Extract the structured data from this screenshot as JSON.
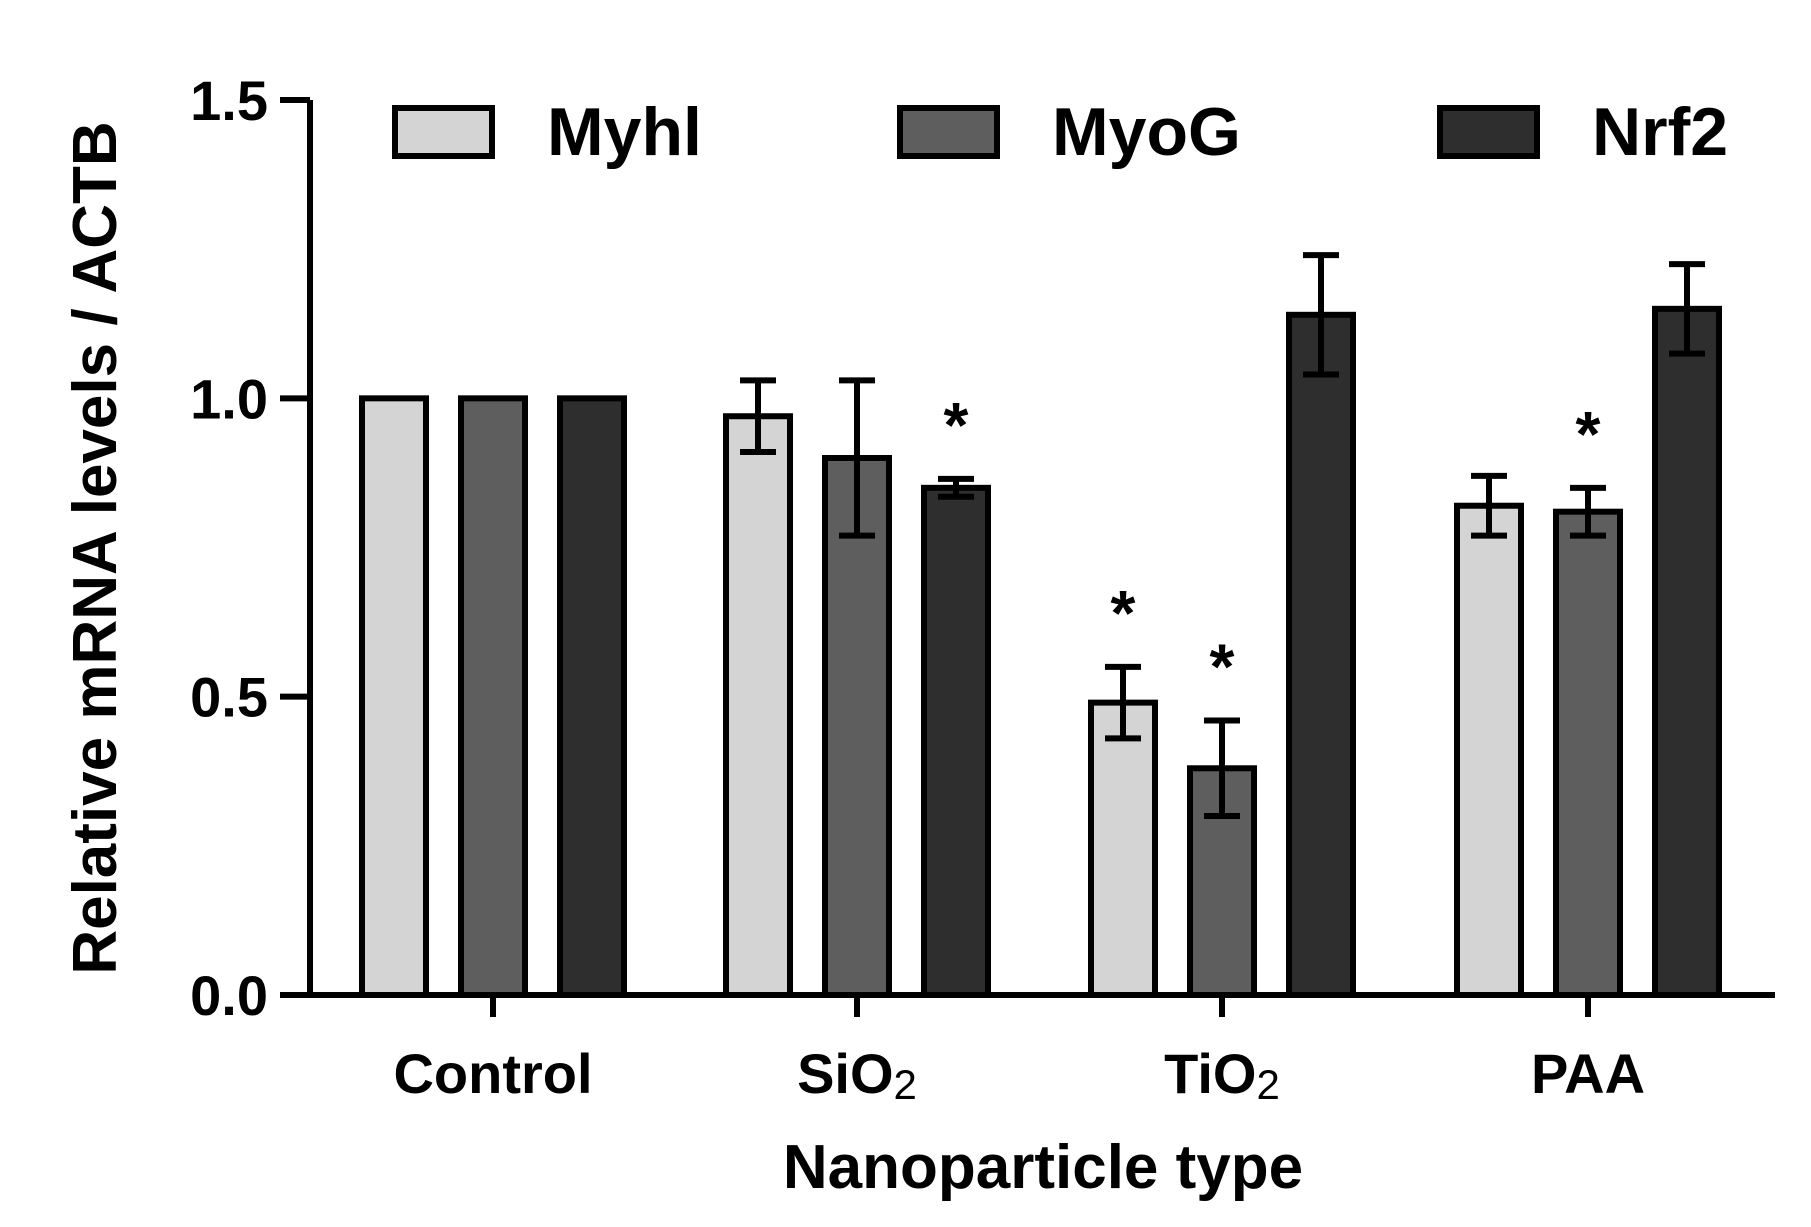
{
  "chart_data": {
    "type": "bar",
    "title": "",
    "xlabel": "Nanoparticle type",
    "ylabel": "Relative mRNA levels / ACTB",
    "ylim": [
      0,
      1.5
    ],
    "yticks": [
      {
        "value": 0.0,
        "label": "0.0"
      },
      {
        "value": 0.5,
        "label": "0.5"
      },
      {
        "value": 1.0,
        "label": "1.0"
      },
      {
        "value": 1.5,
        "label": "1.5"
      }
    ],
    "categories": [
      {
        "main": "Control",
        "sub": ""
      },
      {
        "main": "SiO",
        "sub": "2"
      },
      {
        "main": "TiO",
        "sub": "2"
      },
      {
        "main": "PAA",
        "sub": ""
      }
    ],
    "series": [
      {
        "name": "Myhl",
        "color": "#d4d4d4",
        "values": [
          1.0,
          0.97,
          0.49,
          0.82
        ],
        "errors": [
          0,
          0.06,
          0.06,
          0.05
        ],
        "significant": [
          false,
          false,
          true,
          false
        ]
      },
      {
        "name": "MyoG",
        "color": "#5e5e5e",
        "values": [
          1.0,
          0.9,
          0.38,
          0.81
        ],
        "errors": [
          0,
          0.13,
          0.08,
          0.04
        ],
        "significant": [
          false,
          false,
          true,
          true
        ]
      },
      {
        "name": "Nrf2",
        "color": "#2e2e2e",
        "values": [
          1.0,
          0.85,
          1.14,
          1.15
        ],
        "errors": [
          0,
          0.015,
          0.1,
          0.075
        ],
        "significant": [
          false,
          true,
          false,
          false
        ]
      }
    ],
    "significance_marker": "*",
    "legend_position": "top"
  }
}
